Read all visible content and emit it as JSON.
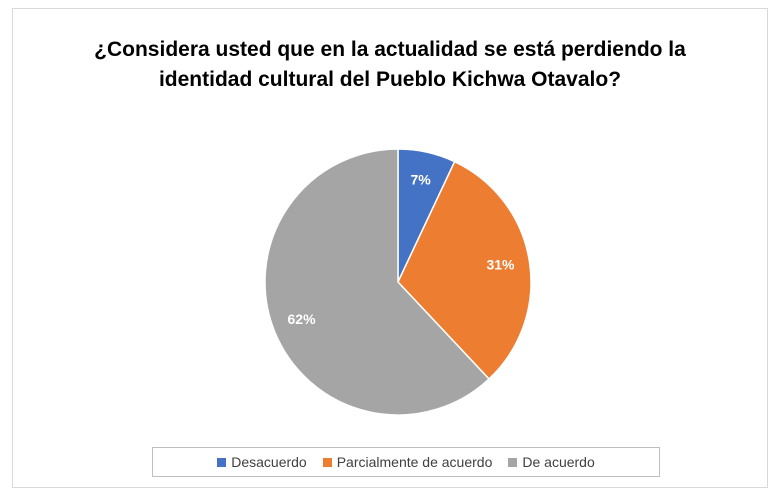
{
  "chart_data": {
    "type": "pie",
    "title": "¿Considera usted que en la actualidad se está perdiendo la identidad cultural del Pueblo Kichwa Otavalo?",
    "categories": [
      "Desacuerdo",
      "Parcialmente de acuerdo",
      "De acuerdo"
    ],
    "values": [
      7,
      31,
      62
    ],
    "value_labels": [
      "7%",
      "31%",
      "62%"
    ],
    "colors": [
      "#4472c4",
      "#ed7d31",
      "#a5a5a5"
    ],
    "legend": "bottom"
  }
}
